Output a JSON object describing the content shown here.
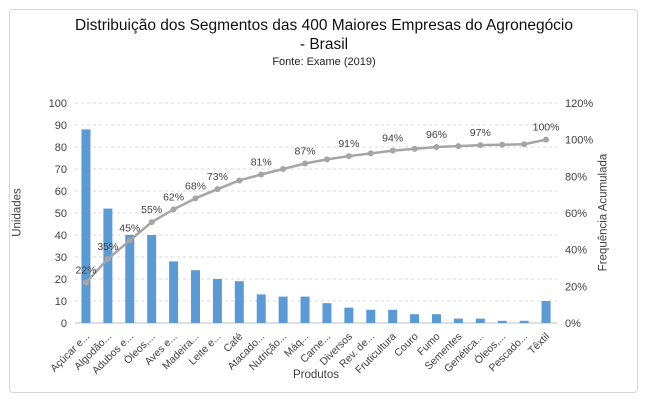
{
  "window": {
    "background": "#ffffff",
    "frame_border_color": "#d6d6d6"
  },
  "chart_data": {
    "type": "bar",
    "subtype": "pareto (bars + cumulative line)",
    "title": "Distribuição dos Segmentos das 400 Maiores Empresas do Agronegócio - Brasil",
    "subtitle": "Fonte: Exame (2019)",
    "xlabel": "Produtos",
    "legend": "none",
    "grid": "horizontal-dashed",
    "categories": [
      "Açúcar e...",
      "Algodão...",
      "Adubos e...",
      "Óleos,...",
      "Aves e...",
      "Madeira...",
      "Leite e...",
      "Café",
      "Atacado...",
      "Nutrição...",
      "Máq...",
      "Carne...",
      "Diversos",
      "Rev. de...",
      "Fruticultura",
      "Couro",
      "Fumo",
      "Sementes",
      "Genética...",
      "Óleos,...",
      "Pescado...",
      "Têxtil"
    ],
    "series": [
      {
        "name": "Unidades",
        "type": "bar",
        "color": "#5B9BD5",
        "axis": "left",
        "values": [
          88,
          52,
          40,
          40,
          28,
          24,
          20,
          19,
          13,
          12,
          12,
          9,
          7,
          6,
          6,
          4,
          4,
          2,
          2,
          1,
          1,
          10
        ]
      },
      {
        "name": "Frequência Acumulada",
        "type": "line",
        "color": "#A5A5A5",
        "axis": "right",
        "values": [
          22,
          35,
          45,
          55,
          62,
          68,
          73,
          77.75,
          81,
          84,
          87,
          89.25,
          91,
          92.5,
          94,
          95,
          96,
          96.5,
          97,
          97.25,
          97.5,
          100
        ],
        "point_labels": [
          "22%",
          "35%",
          "45%",
          "55%",
          "62%",
          "68%",
          "73%",
          "",
          "81%",
          "",
          "87%",
          "",
          "91%",
          "",
          "94%",
          "",
          "96%",
          "",
          "97%",
          "",
          "",
          "100%"
        ]
      }
    ],
    "left_axis": {
      "title": "Unidades",
      "min": 0,
      "max": 100,
      "tick_labels": [
        "0",
        "10",
        "20",
        "30",
        "40",
        "50",
        "60",
        "70",
        "80",
        "90",
        "100"
      ]
    },
    "right_axis": {
      "title": "Frequência Acumulada",
      "min": 0,
      "max": 120,
      "tick_labels": [
        "0%",
        "20%",
        "40%",
        "60%",
        "80%",
        "100%",
        "120%"
      ]
    },
    "colors": {
      "gridline": "#D9D9D9",
      "axis_line": "#BFBFBF",
      "tick_text": "#404040",
      "data_label_text": "#404040"
    }
  }
}
